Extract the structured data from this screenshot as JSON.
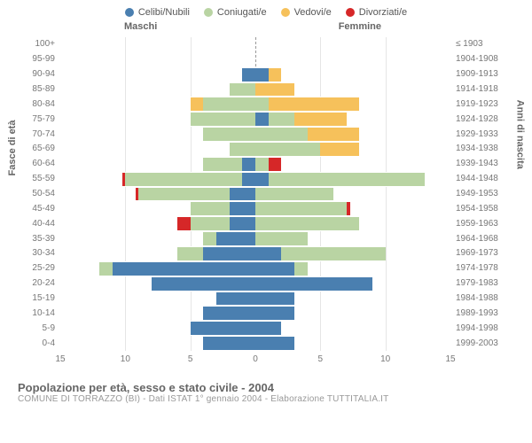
{
  "legend": [
    {
      "label": "Celibi/Nubili",
      "color": "#4a7fb0"
    },
    {
      "label": "Coniugati/e",
      "color": "#b9d4a3"
    },
    {
      "label": "Vedovi/e",
      "color": "#f6c15b"
    },
    {
      "label": "Divorziati/e",
      "color": "#d62728"
    }
  ],
  "headers": {
    "male": "Maschi",
    "female": "Femmine"
  },
  "axis": {
    "left": "Fasce di età",
    "right": "Anni di nascita"
  },
  "x": {
    "max": 15,
    "ticks": [
      15,
      10,
      5,
      0,
      5,
      10,
      15
    ]
  },
  "footer": {
    "title": "Popolazione per età, sesso e stato civile - 2004",
    "sub": "COMUNE DI TORRAZZO (BI) - Dati ISTAT 1° gennaio 2004 - Elaborazione TUTTITALIA.IT"
  },
  "rows": [
    {
      "age": "100+",
      "birth": "≤ 1903",
      "m": [
        0,
        0,
        0,
        0
      ],
      "f": [
        0,
        0,
        0,
        0
      ]
    },
    {
      "age": "95-99",
      "birth": "1904-1908",
      "m": [
        0,
        0,
        0,
        0
      ],
      "f": [
        0,
        0,
        0,
        0
      ]
    },
    {
      "age": "90-94",
      "birth": "1909-1913",
      "m": [
        1,
        0,
        0,
        0
      ],
      "f": [
        1,
        0,
        1,
        0
      ]
    },
    {
      "age": "85-89",
      "birth": "1914-1918",
      "m": [
        0,
        2,
        0,
        0
      ],
      "f": [
        0,
        0,
        3,
        0
      ]
    },
    {
      "age": "80-84",
      "birth": "1919-1923",
      "m": [
        0,
        4,
        1,
        0
      ],
      "f": [
        0,
        1,
        7,
        0
      ]
    },
    {
      "age": "75-79",
      "birth": "1924-1928",
      "m": [
        0,
        5,
        0,
        0
      ],
      "f": [
        1,
        2,
        4,
        0
      ]
    },
    {
      "age": "70-74",
      "birth": "1929-1933",
      "m": [
        0,
        4,
        0,
        0
      ],
      "f": [
        0,
        4,
        4,
        0
      ]
    },
    {
      "age": "65-69",
      "birth": "1934-1938",
      "m": [
        0,
        2,
        0,
        0
      ],
      "f": [
        0,
        5,
        3,
        0
      ]
    },
    {
      "age": "60-64",
      "birth": "1939-1943",
      "m": [
        1,
        3,
        0,
        0
      ],
      "f": [
        0,
        1,
        0,
        1
      ]
    },
    {
      "age": "55-59",
      "birth": "1944-1948",
      "m": [
        1,
        9,
        0,
        0.2
      ],
      "f": [
        1,
        12,
        0,
        0
      ]
    },
    {
      "age": "50-54",
      "birth": "1949-1953",
      "m": [
        2,
        7,
        0,
        0.2
      ],
      "f": [
        0,
        6,
        0,
        0
      ]
    },
    {
      "age": "45-49",
      "birth": "1954-1958",
      "m": [
        2,
        3,
        0,
        0
      ],
      "f": [
        0,
        7,
        0,
        0.3
      ]
    },
    {
      "age": "40-44",
      "birth": "1959-1963",
      "m": [
        2,
        3,
        0,
        1
      ],
      "f": [
        0,
        8,
        0,
        0
      ]
    },
    {
      "age": "35-39",
      "birth": "1964-1968",
      "m": [
        3,
        1,
        0,
        0
      ],
      "f": [
        0,
        4,
        0,
        0
      ]
    },
    {
      "age": "30-34",
      "birth": "1969-1973",
      "m": [
        4,
        2,
        0,
        0
      ],
      "f": [
        2,
        8,
        0,
        0
      ]
    },
    {
      "age": "25-29",
      "birth": "1974-1978",
      "m": [
        11,
        1,
        0,
        0
      ],
      "f": [
        3,
        1,
        0,
        0
      ]
    },
    {
      "age": "20-24",
      "birth": "1979-1983",
      "m": [
        8,
        0,
        0,
        0
      ],
      "f": [
        9,
        0,
        0,
        0
      ]
    },
    {
      "age": "15-19",
      "birth": "1984-1988",
      "m": [
        3,
        0,
        0,
        0
      ],
      "f": [
        3,
        0,
        0,
        0
      ]
    },
    {
      "age": "10-14",
      "birth": "1989-1993",
      "m": [
        4,
        0,
        0,
        0
      ],
      "f": [
        3,
        0,
        0,
        0
      ]
    },
    {
      "age": "5-9",
      "birth": "1994-1998",
      "m": [
        5,
        0,
        0,
        0
      ],
      "f": [
        2,
        0,
        0,
        0
      ]
    },
    {
      "age": "0-4",
      "birth": "1999-2003",
      "m": [
        4,
        0,
        0,
        0
      ],
      "f": [
        3,
        0,
        0,
        0
      ]
    }
  ],
  "segment_order_male": [
    3,
    2,
    1,
    0
  ],
  "segment_order_female": [
    0,
    1,
    2,
    3
  ],
  "colors": [
    "#4a7fb0",
    "#b9d4a3",
    "#f6c15b",
    "#d62728"
  ]
}
